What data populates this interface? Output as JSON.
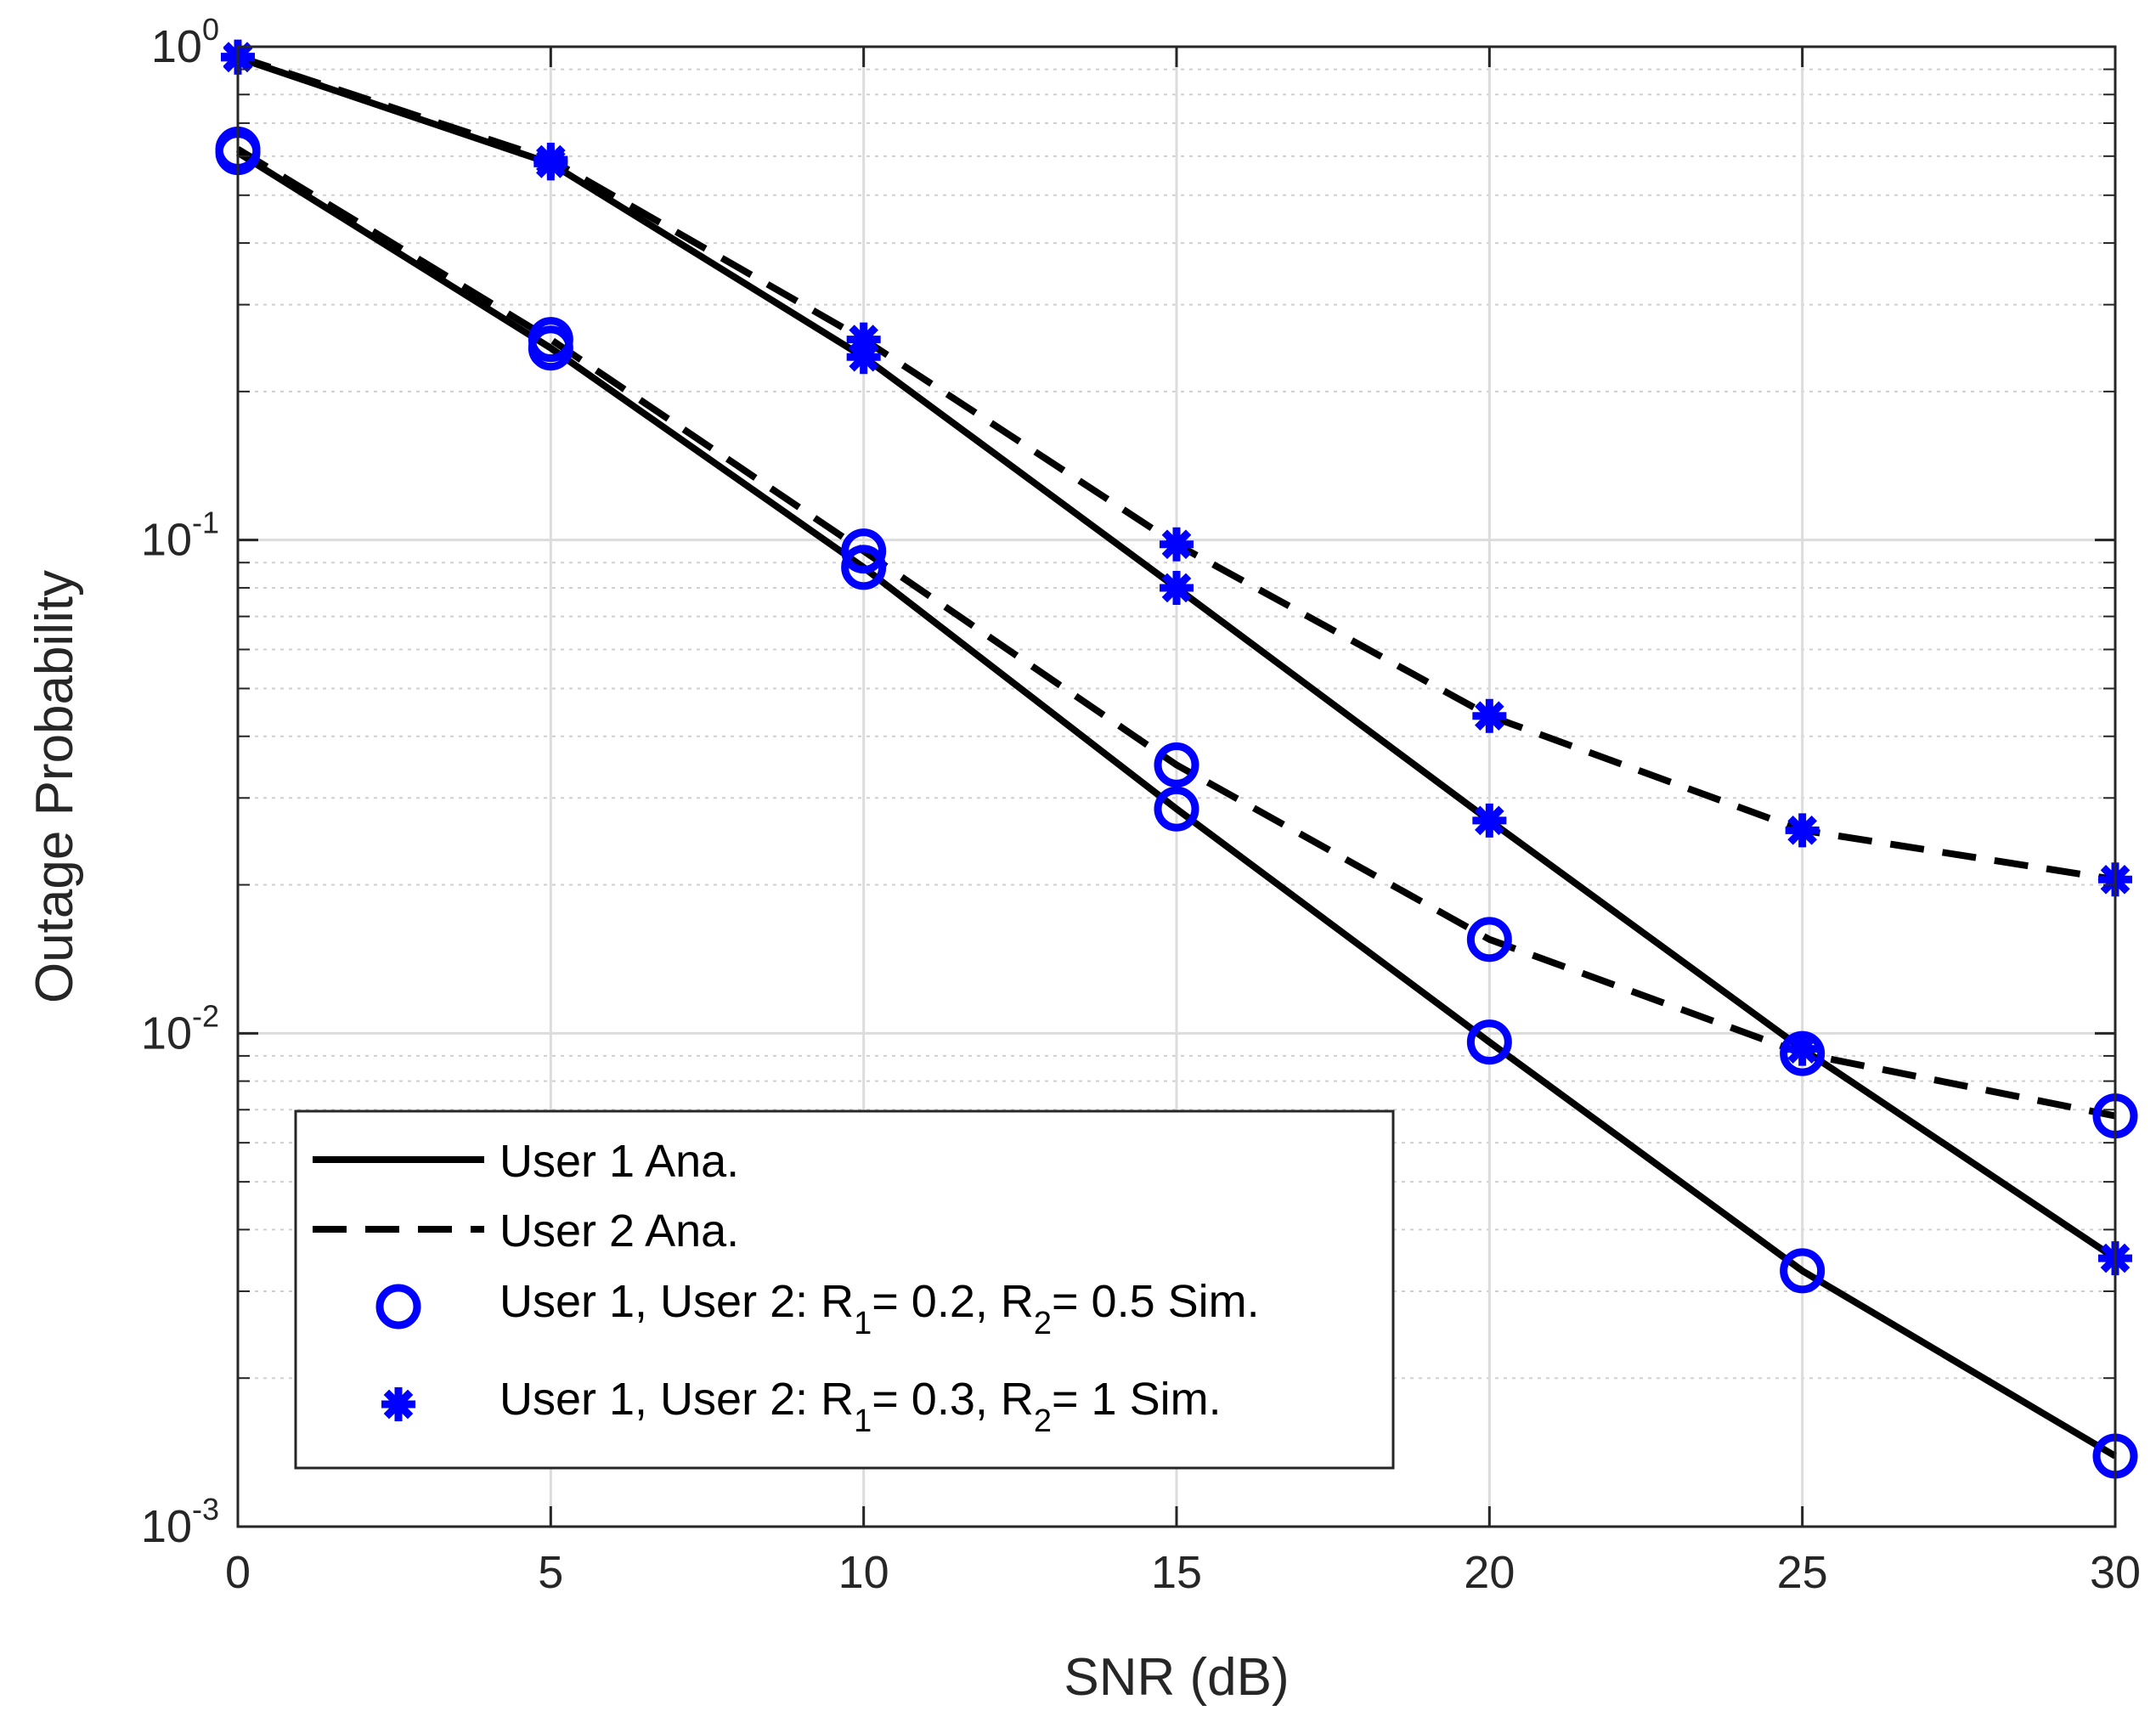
{
  "chart_data": {
    "type": "line",
    "title": "",
    "xlabel": "SNR (dB)",
    "ylabel": "Outage Probability",
    "xlim": [
      0,
      30
    ],
    "ylim": [
      0.001,
      1
    ],
    "yscale": "log",
    "grid": true,
    "legend_position": "bottom-left",
    "x": [
      0,
      5,
      10,
      15,
      20,
      25,
      30
    ],
    "x_ticks": [
      "0",
      "5",
      "10",
      "15",
      "20",
      "25",
      "30"
    ],
    "y_ticks": [
      {
        "value": 1,
        "base": "10",
        "exp": "0"
      },
      {
        "value": 0.1,
        "base": "10",
        "exp": "-1"
      },
      {
        "value": 0.01,
        "base": "10",
        "exp": "-2"
      },
      {
        "value": 0.001,
        "base": "10",
        "exp": "-3"
      }
    ],
    "series": [
      {
        "name": "User 1 Ana. (R1=0.2, R2=0.5)",
        "style": "solid",
        "color": "#000000",
        "values": [
          0.61,
          0.245,
          0.088,
          0.0285,
          0.0096,
          0.0033,
          0.00139
        ]
      },
      {
        "name": "User 2 Ana. (R1=0.2, R2=0.5)",
        "style": "dashed",
        "color": "#000000",
        "values": [
          0.62,
          0.255,
          0.095,
          0.035,
          0.0155,
          0.0091,
          0.0068
        ]
      },
      {
        "name": "User 1 Ana. (R1=0.3, R2=1)",
        "style": "solid",
        "color": "#000000",
        "values": [
          0.95,
          0.58,
          0.235,
          0.08,
          0.027,
          0.0093,
          0.0035
        ]
      },
      {
        "name": "User 2 Ana. (R1=0.3, R2=1)",
        "style": "dashed",
        "color": "#000000",
        "values": [
          0.955,
          0.59,
          0.255,
          0.098,
          0.044,
          0.0258,
          0.0205
        ]
      },
      {
        "name": "User 1 Sim. (R1=0.2, R2=0.5)",
        "style": "marker-circle",
        "color": "#0000FF",
        "values": [
          0.61,
          0.245,
          0.088,
          0.0285,
          0.0096,
          0.0033,
          0.00139
        ]
      },
      {
        "name": "User 2 Sim. (R1=0.2, R2=0.5)",
        "style": "marker-circle",
        "color": "#0000FF",
        "values": [
          0.62,
          0.255,
          0.095,
          0.035,
          0.0155,
          0.0091,
          0.0068
        ]
      },
      {
        "name": "User 1 Sim. (R1=0.3, R2=1)",
        "style": "marker-star",
        "color": "#0000FF",
        "values": [
          0.95,
          0.58,
          0.235,
          0.08,
          0.027,
          0.0093,
          0.0035
        ]
      },
      {
        "name": "User 2 Sim. (R1=0.3, R2=1)",
        "style": "marker-star",
        "color": "#0000FF",
        "values": [
          0.955,
          0.59,
          0.255,
          0.098,
          0.044,
          0.0258,
          0.0205
        ]
      }
    ],
    "legend": [
      {
        "style": "solid",
        "text": "User 1 Ana."
      },
      {
        "style": "dashed",
        "text": "User 2 Ana."
      },
      {
        "style": "marker-circle",
        "parts": [
          "User 1, User 2: R",
          "1",
          "= 0.2, R",
          "2",
          "= 0.5 Sim."
        ]
      },
      {
        "style": "marker-star",
        "parts": [
          "User 1, User 2: R",
          "1",
          "= 0.3, R",
          "2",
          "= 1 Sim."
        ]
      }
    ]
  }
}
